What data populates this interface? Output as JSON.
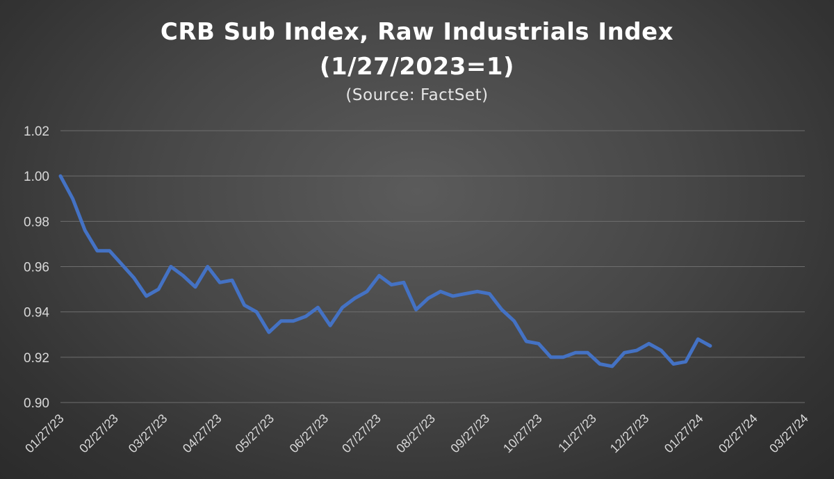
{
  "chart_data": {
    "type": "line",
    "title": "CRB Sub Index, Raw Industrials Index",
    "title_line2": "(1/27/2023=1)",
    "subtitle": "(Source: FactSet)",
    "xlabel": "",
    "ylabel": "",
    "ylim": [
      0.9,
      1.02
    ],
    "yticks": [
      "0.90",
      "0.92",
      "0.94",
      "0.96",
      "0.98",
      "1.00",
      "1.02"
    ],
    "xlim": [
      "01/27/23",
      "03/27/24"
    ],
    "xticks": [
      "01/27/23",
      "02/27/23",
      "03/27/23",
      "04/27/23",
      "05/27/23",
      "06/27/23",
      "07/27/23",
      "08/27/23",
      "09/27/23",
      "10/27/23",
      "11/27/23",
      "12/27/23",
      "01/27/24",
      "02/27/24",
      "03/27/24"
    ],
    "grid": "horizontal",
    "legend": "none",
    "series": [
      {
        "color": "#4472c4",
        "x": [
          "01/27/23",
          "02/03/23",
          "02/10/23",
          "02/17/23",
          "02/24/23",
          "03/03/23",
          "03/10/23",
          "03/17/23",
          "03/24/23",
          "03/31/23",
          "04/07/23",
          "04/14/23",
          "04/21/23",
          "04/28/23",
          "05/05/23",
          "05/12/23",
          "05/19/23",
          "05/26/23",
          "06/02/23",
          "06/09/23",
          "06/16/23",
          "06/23/23",
          "06/30/23",
          "07/07/23",
          "07/14/23",
          "07/21/23",
          "07/28/23",
          "08/04/23",
          "08/11/23",
          "08/18/23",
          "08/25/23",
          "09/01/23",
          "09/08/23",
          "09/15/23",
          "09/22/23",
          "09/29/23",
          "10/06/23",
          "10/13/23",
          "10/20/23",
          "10/27/23",
          "11/03/23",
          "11/10/23",
          "11/17/23",
          "11/24/23",
          "12/01/23",
          "12/08/23",
          "12/15/23",
          "12/22/23",
          "12/29/23",
          "01/05/24",
          "01/12/24",
          "01/19/24",
          "01/26/24",
          "02/02/24"
        ],
        "y": [
          1.0,
          0.99,
          0.976,
          0.967,
          0.967,
          0.961,
          0.955,
          0.947,
          0.95,
          0.96,
          0.956,
          0.951,
          0.96,
          0.953,
          0.954,
          0.943,
          0.94,
          0.931,
          0.936,
          0.936,
          0.938,
          0.942,
          0.934,
          0.942,
          0.946,
          0.949,
          0.956,
          0.952,
          0.953,
          0.941,
          0.946,
          0.949,
          0.947,
          0.948,
          0.949,
          0.948,
          0.941,
          0.936,
          0.927,
          0.926,
          0.92,
          0.92,
          0.922,
          0.922,
          0.917,
          0.916,
          0.922,
          0.923,
          0.926,
          0.923,
          0.917,
          0.918,
          0.928,
          0.925
        ]
      }
    ]
  }
}
